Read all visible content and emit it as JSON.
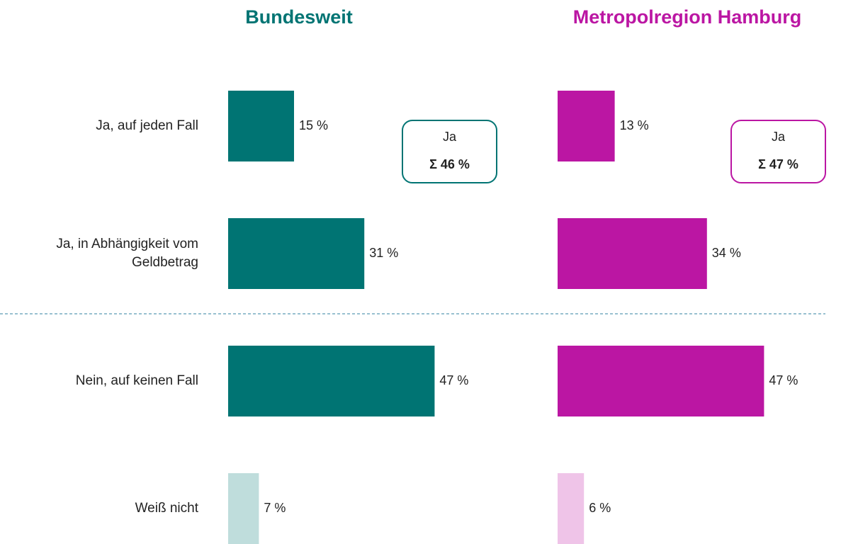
{
  "chart_data": {
    "type": "bar",
    "orientation": "horizontal",
    "categories": [
      "Ja, auf jeden Fall",
      "Ja, in Abhängigkeit vom Geldbetrag",
      "Nein, auf keinen Fall",
      "Weiß nicht"
    ],
    "series": [
      {
        "name": "Bundesweit",
        "color": "#007473",
        "colors": [
          "#007473",
          "#007473",
          "#007473",
          "#bfdddc"
        ],
        "values": [
          15,
          31,
          47,
          7
        ],
        "value_labels": [
          "15 %",
          "31 %",
          "47 %",
          "7 %"
        ],
        "annotation": {
          "label": "Ja",
          "text": "Σ 46 %"
        }
      },
      {
        "name": "Metropolregion Hamburg",
        "color": "#bb16a3",
        "colors": [
          "#bb16a3",
          "#bb16a3",
          "#bb16a3",
          "#efc4e8"
        ],
        "values": [
          13,
          34,
          47,
          6
        ],
        "value_labels": [
          "13 %",
          "34 %",
          "47 %",
          "6 %"
        ],
        "annotation": {
          "label": "Ja",
          "text": "Σ 47 %"
        }
      }
    ]
  }
}
